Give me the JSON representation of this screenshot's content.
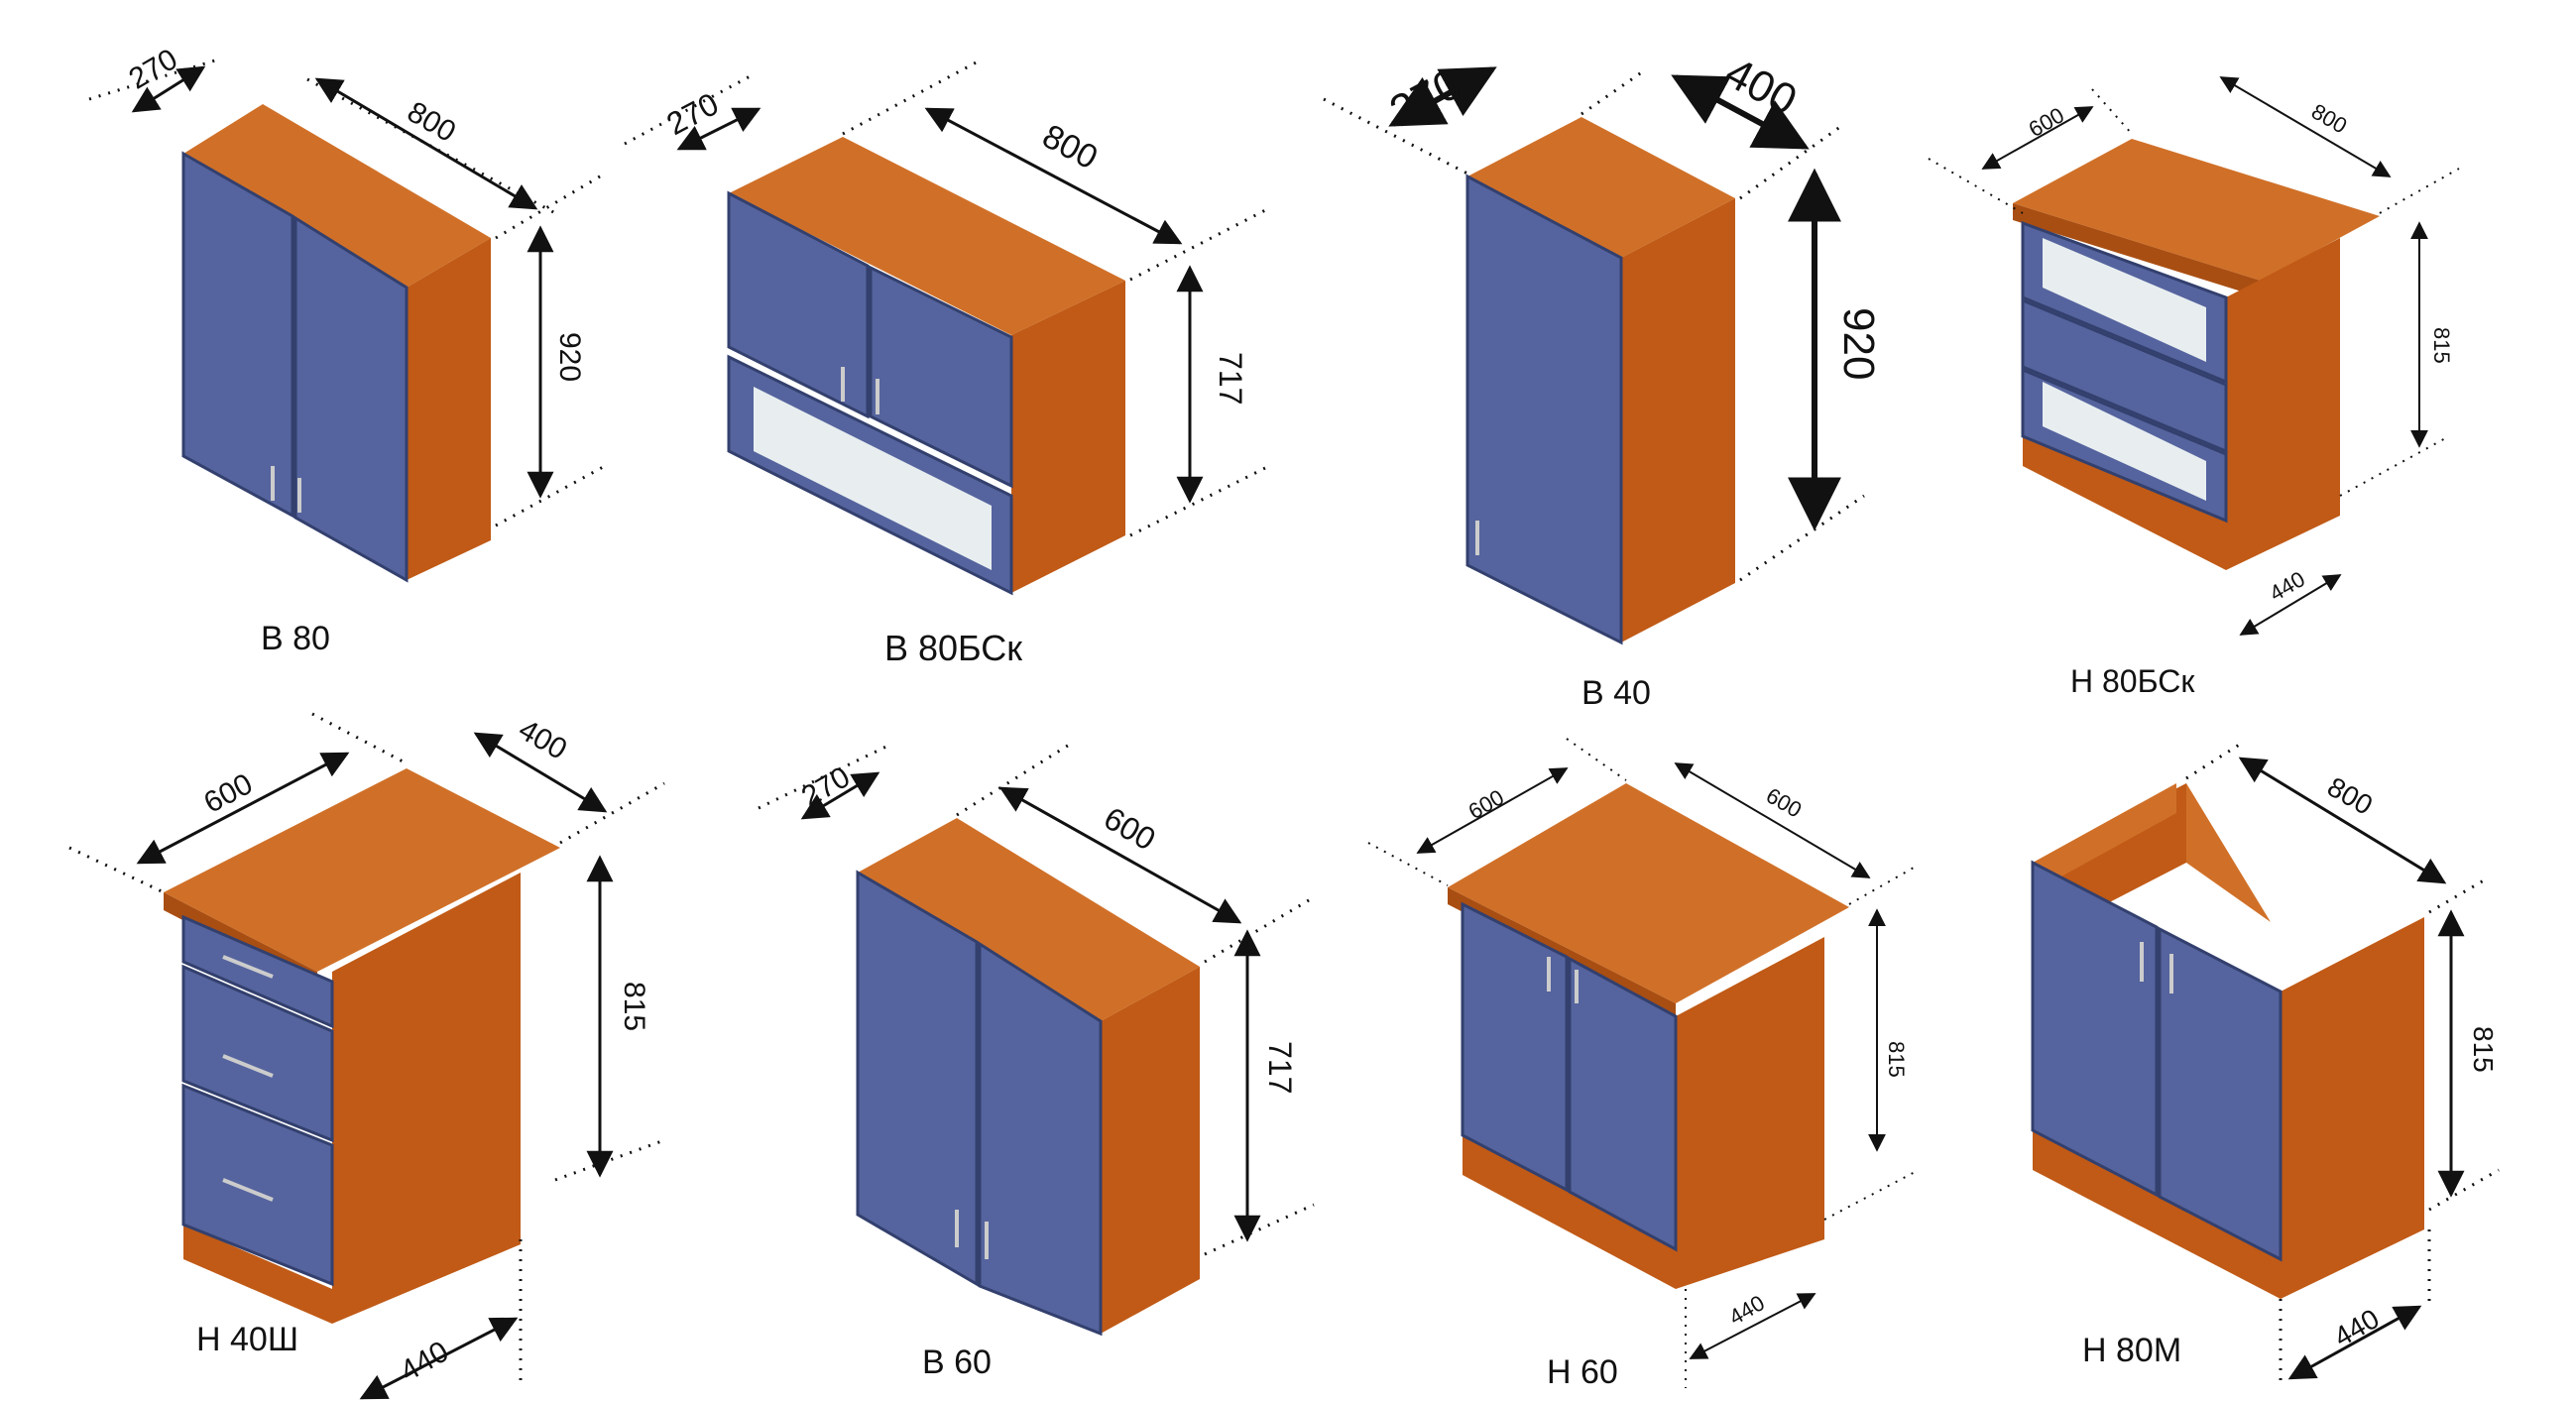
{
  "colors": {
    "wood": "#c8621a",
    "wood_top": "#d07028",
    "wood_dark": "#a94e12",
    "door": "#55649e",
    "door_edge": "#33406e",
    "glass": "#e8eef0",
    "line": "#111111"
  },
  "cabinets": [
    {
      "name": "В 80",
      "dims": [
        "270",
        "800",
        "920"
      ]
    },
    {
      "name": "В 80БСк",
      "dims": [
        "270",
        "800",
        "717"
      ]
    },
    {
      "name": "В 40",
      "dims": [
        "270",
        "400",
        "920"
      ]
    },
    {
      "name": "Н 80БСк",
      "dims": [
        "600",
        "800",
        "815",
        "440"
      ]
    },
    {
      "name": "Н 40Ш",
      "dims": [
        "600",
        "400",
        "815",
        "440"
      ]
    },
    {
      "name": "В 60",
      "dims": [
        "270",
        "600",
        "717"
      ]
    },
    {
      "name": "Н 60",
      "dims": [
        "600",
        "600",
        "815",
        "440"
      ]
    },
    {
      "name": "Н 80М",
      "dims": [
        "800",
        "815",
        "440"
      ]
    }
  ]
}
